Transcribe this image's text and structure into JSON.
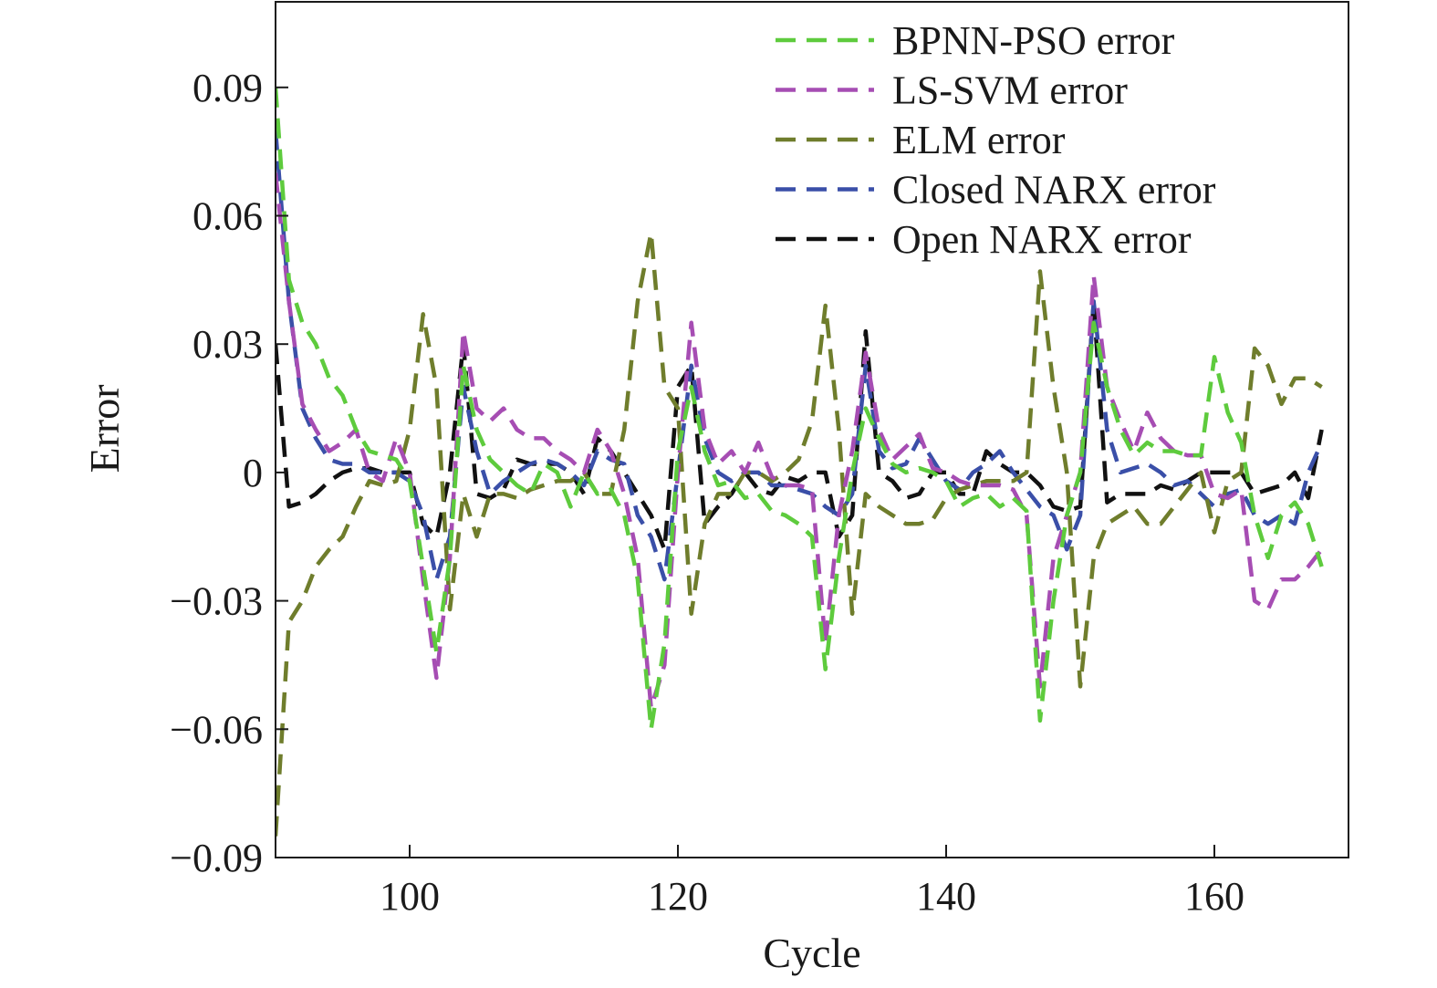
{
  "chart_data": {
    "type": "line",
    "title": "",
    "xlabel": "Cycle",
    "ylabel": "Error",
    "xlim": [
      90,
      170
    ],
    "ylim": [
      -0.09,
      0.11
    ],
    "xticks": [
      100,
      120,
      140,
      160
    ],
    "xtick_labels": [
      "100",
      "120",
      "140",
      "160"
    ],
    "yticks": [
      0.09,
      0.06,
      0.03,
      0,
      -0.03,
      -0.06,
      -0.09
    ],
    "ytick_labels": [
      "0.09",
      "0.06",
      "0.03",
      "0",
      "−0.03",
      "−0.06",
      "−0.09"
    ],
    "grid": false,
    "legend_position": "top-right",
    "line_style": "dashed",
    "x": [
      90,
      91,
      92,
      93,
      94,
      95,
      96,
      97,
      98,
      99,
      100,
      101,
      102,
      103,
      104,
      105,
      106,
      107,
      108,
      109,
      110,
      111,
      112,
      113,
      114,
      115,
      116,
      117,
      118,
      119,
      120,
      121,
      122,
      123,
      124,
      125,
      126,
      127,
      128,
      129,
      130,
      131,
      132,
      133,
      134,
      135,
      136,
      137,
      138,
      139,
      140,
      141,
      142,
      143,
      144,
      145,
      146,
      147,
      148,
      149,
      150,
      151,
      152,
      153,
      154,
      155,
      156,
      157,
      158,
      159,
      160,
      161,
      162,
      163,
      164,
      165,
      166,
      167,
      168
    ],
    "series": [
      {
        "name": "BPNN-PSO error",
        "color": "#5ecb3d",
        "values": [
          0.09,
          0.045,
          0.035,
          0.03,
          0.022,
          0.018,
          0.01,
          0.005,
          0.004,
          0.003,
          -0.002,
          -0.022,
          -0.042,
          -0.02,
          0.025,
          0.01,
          0.003,
          0.0,
          -0.003,
          -0.005,
          0.002,
          0.0,
          -0.008,
          0.0,
          -0.005,
          -0.004,
          -0.01,
          -0.025,
          -0.06,
          -0.04,
          0.005,
          0.02,
          0.005,
          -0.003,
          -0.002,
          -0.006,
          -0.005,
          -0.009,
          -0.01,
          -0.012,
          -0.015,
          -0.046,
          -0.02,
          0.0,
          0.015,
          0.008,
          0.002,
          0.0,
          0.001,
          0.0,
          -0.002,
          -0.008,
          -0.006,
          -0.005,
          -0.008,
          -0.006,
          -0.009,
          -0.058,
          -0.03,
          -0.01,
          0.0,
          0.035,
          0.02,
          0.01,
          0.004,
          0.007,
          0.005,
          0.005,
          0.004,
          0.004,
          0.027,
          0.014,
          0.007,
          -0.01,
          -0.02,
          -0.01,
          -0.007,
          -0.012,
          -0.022
        ]
      },
      {
        "name": "LS-SVM error",
        "color": "#a64db3",
        "values": [
          0.07,
          0.04,
          0.016,
          0.01,
          0.005,
          0.007,
          0.01,
          0.0,
          -0.002,
          0.008,
          0.0,
          -0.025,
          -0.048,
          -0.02,
          0.033,
          0.015,
          0.012,
          0.015,
          0.01,
          0.008,
          0.008,
          0.005,
          0.003,
          0.0,
          0.01,
          0.005,
          -0.005,
          -0.02,
          -0.055,
          -0.045,
          0.0,
          0.035,
          0.01,
          0.002,
          0.005,
          0.0,
          0.007,
          -0.001,
          -0.003,
          -0.003,
          -0.004,
          -0.04,
          -0.01,
          0.005,
          0.028,
          0.01,
          0.003,
          0.006,
          0.009,
          0.001,
          0.0,
          -0.002,
          -0.003,
          -0.003,
          -0.003,
          -0.004,
          -0.01,
          -0.05,
          -0.02,
          -0.01,
          0.0,
          0.046,
          0.02,
          0.012,
          0.005,
          0.014,
          0.008,
          0.005,
          0.004,
          0.004,
          -0.005,
          -0.006,
          -0.004,
          -0.03,
          -0.032,
          -0.025,
          -0.025,
          -0.022,
          -0.018
        ]
      },
      {
        "name": "ELM error",
        "color": "#6f7d2c",
        "values": [
          -0.085,
          -0.035,
          -0.03,
          -0.022,
          -0.018,
          -0.015,
          -0.008,
          -0.002,
          -0.003,
          -0.002,
          0.01,
          0.037,
          0.02,
          -0.032,
          -0.005,
          -0.015,
          -0.005,
          -0.005,
          -0.006,
          -0.004,
          -0.003,
          -0.002,
          -0.002,
          0.0,
          -0.005,
          -0.005,
          0.01,
          0.04,
          0.056,
          0.02,
          0.015,
          -0.033,
          -0.012,
          -0.005,
          -0.005,
          0.0,
          0.0,
          -0.002,
          0.0,
          0.003,
          0.012,
          0.039,
          0.01,
          -0.033,
          -0.005,
          -0.008,
          -0.01,
          -0.012,
          -0.012,
          -0.011,
          -0.006,
          -0.004,
          -0.003,
          -0.002,
          -0.002,
          -0.002,
          0.0,
          0.047,
          0.02,
          0.0,
          -0.05,
          -0.02,
          -0.012,
          -0.01,
          -0.008,
          -0.012,
          -0.012,
          -0.008,
          -0.004,
          0.0,
          -0.014,
          -0.002,
          0.0,
          0.029,
          0.025,
          0.016,
          0.022,
          0.022,
          0.02
        ]
      },
      {
        "name": "Closed NARX error",
        "color": "#3a4fa8",
        "values": [
          0.08,
          0.04,
          0.015,
          0.008,
          0.003,
          0.002,
          0.002,
          0.0,
          0.0,
          0.0,
          -0.002,
          -0.01,
          -0.025,
          -0.015,
          0.02,
          0.005,
          -0.005,
          -0.002,
          0.0,
          0.002,
          0.003,
          0.002,
          0.0,
          -0.003,
          0.005,
          0.003,
          0.002,
          -0.01,
          -0.015,
          -0.025,
          0.0,
          0.025,
          0.008,
          0.0,
          -0.002,
          0.0,
          0.0,
          -0.003,
          -0.003,
          -0.004,
          -0.005,
          -0.008,
          -0.01,
          -0.005,
          0.025,
          0.005,
          0.001,
          0.002,
          0.008,
          0.003,
          -0.002,
          -0.004,
          0.0,
          0.002,
          0.005,
          0.0,
          -0.004,
          -0.008,
          -0.01,
          -0.018,
          -0.01,
          0.04,
          0.01,
          0.0,
          0.001,
          0.002,
          0.0,
          -0.003,
          -0.002,
          -0.005,
          -0.008,
          -0.005,
          -0.004,
          -0.01,
          -0.012,
          -0.01,
          -0.012,
          0.0,
          0.007
        ]
      },
      {
        "name": "Open NARX error",
        "color": "#111111",
        "values": [
          0.03,
          -0.008,
          -0.007,
          -0.005,
          -0.002,
          0.0,
          0.001,
          0.001,
          0.0,
          0.0,
          0.0,
          -0.012,
          -0.015,
          0.0,
          0.03,
          -0.005,
          -0.006,
          -0.004,
          0.003,
          0.002,
          0.002,
          0.002,
          0.0,
          -0.005,
          0.008,
          0.005,
          0.0,
          -0.005,
          -0.01,
          -0.018,
          0.02,
          0.025,
          -0.012,
          -0.008,
          -0.005,
          0.0,
          -0.004,
          -0.005,
          -0.001,
          -0.002,
          0.0,
          0.0,
          -0.015,
          -0.01,
          0.033,
          0.0,
          -0.002,
          -0.006,
          -0.005,
          0.0,
          0.0,
          -0.005,
          -0.005,
          0.005,
          0.002,
          0.0,
          0.0,
          -0.003,
          -0.008,
          -0.009,
          -0.008,
          0.04,
          -0.007,
          -0.005,
          -0.005,
          -0.005,
          -0.003,
          -0.004,
          -0.002,
          0.0,
          0.0,
          0.0,
          0.0,
          -0.005,
          -0.004,
          -0.003,
          0.0,
          -0.006,
          0.01
        ]
      }
    ]
  }
}
